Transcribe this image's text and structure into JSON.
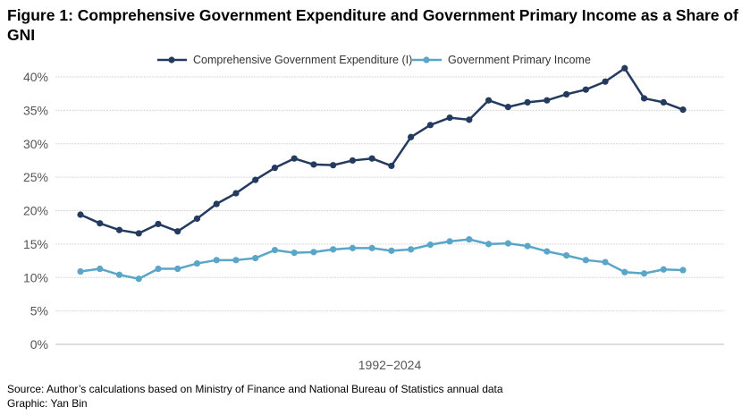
{
  "chart_data": {
    "type": "line",
    "title": "Figure 1: Comprehensive Government Expenditure and Government Primary Income as a Share of GNI",
    "xlabel": "1992−2024",
    "ylabel": "",
    "ylim": [
      0,
      40
    ],
    "yticks": [
      0,
      5,
      10,
      15,
      20,
      25,
      30,
      35,
      40
    ],
    "ytick_labels": [
      "0%",
      "5%",
      "10%",
      "15%",
      "20%",
      "25%",
      "30%",
      "35%",
      "40%"
    ],
    "grid": true,
    "legend_position": "top",
    "series": [
      {
        "name": "Comprehensive Government Expenditure (I)",
        "color": "#243a5e",
        "values": [
          19.4,
          18.1,
          17.1,
          16.6,
          18.0,
          16.9,
          18.8,
          21.0,
          22.6,
          24.6,
          26.4,
          27.8,
          26.9,
          26.8,
          27.5,
          27.8,
          26.7,
          31.0,
          32.8,
          33.9,
          33.6,
          36.5,
          35.5,
          36.2,
          36.5,
          37.4,
          38.1,
          39.3,
          41.3,
          36.8,
          36.2,
          35.1
        ]
      },
      {
        "name": "Government Primary Income",
        "color": "#5aa6c8",
        "values": [
          10.9,
          11.3,
          10.4,
          9.8,
          11.3,
          11.3,
          12.1,
          12.6,
          12.6,
          12.9,
          14.1,
          13.7,
          13.8,
          14.2,
          14.4,
          14.4,
          14.0,
          14.2,
          14.9,
          15.4,
          15.7,
          15.0,
          15.1,
          14.7,
          13.9,
          13.3,
          12.6,
          12.3,
          10.8,
          10.6,
          11.2,
          11.1
        ]
      }
    ]
  },
  "footer": {
    "source": "Source: Author’s calculations based on Ministry of Finance and National Bureau of Statistics annual data",
    "graphic": "Graphic: Yan Bin"
  }
}
